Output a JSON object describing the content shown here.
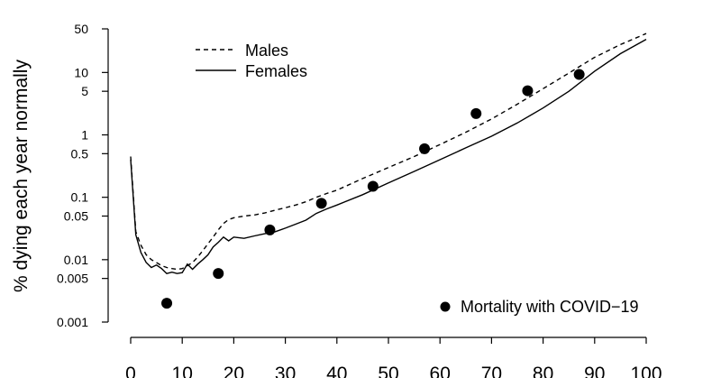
{
  "chart_data": {
    "type": "line",
    "title": "",
    "xlabel": "",
    "ylabel": "% dying each year normally",
    "xlim": [
      0,
      100
    ],
    "ylim": [
      0.001,
      50
    ],
    "yscale": "log",
    "x_ticks": [
      0,
      10,
      20,
      30,
      40,
      50,
      60,
      70,
      80,
      90,
      100
    ],
    "x_tick_labels": [
      "0",
      "10",
      "20",
      "30",
      "40",
      "50",
      "60",
      "70",
      "80",
      "90",
      "100"
    ],
    "y_ticks": [
      0.001,
      0.005,
      0.01,
      0.05,
      0.1,
      0.5,
      1,
      5,
      10,
      50
    ],
    "y_tick_labels": [
      "0.001",
      "0.005",
      "0.01",
      "0.05",
      "0.1",
      "0.5",
      "1",
      "5",
      "10",
      "50"
    ],
    "grid": false,
    "series": [
      {
        "name": "Males",
        "style": "dashed",
        "x": [
          0,
          1,
          2,
          3,
          4,
          5,
          6,
          7,
          8,
          9,
          10,
          11,
          12,
          13,
          14,
          15,
          16,
          17,
          18,
          19,
          20,
          22,
          24,
          26,
          28,
          30,
          32,
          34,
          36,
          38,
          40,
          45,
          50,
          55,
          60,
          65,
          70,
          75,
          80,
          85,
          90,
          95,
          100
        ],
        "values": [
          0.45,
          0.028,
          0.017,
          0.012,
          0.01,
          0.009,
          0.008,
          0.0075,
          0.0072,
          0.007,
          0.0072,
          0.008,
          0.009,
          0.011,
          0.014,
          0.018,
          0.023,
          0.03,
          0.038,
          0.044,
          0.047,
          0.05,
          0.052,
          0.056,
          0.062,
          0.068,
          0.075,
          0.085,
          0.1,
          0.115,
          0.13,
          0.2,
          0.3,
          0.45,
          0.7,
          1.1,
          1.8,
          3.1,
          5.5,
          9.8,
          17.5,
          28,
          42
        ]
      },
      {
        "name": "Females",
        "style": "solid",
        "x": [
          0,
          1,
          2,
          3,
          4,
          5,
          6,
          7,
          8,
          9,
          10,
          11,
          12,
          13,
          14,
          15,
          16,
          17,
          18,
          19,
          20,
          22,
          24,
          26,
          28,
          30,
          32,
          34,
          36,
          38,
          40,
          45,
          50,
          55,
          60,
          65,
          70,
          75,
          80,
          85,
          90,
          95,
          100
        ],
        "values": [
          0.4,
          0.025,
          0.013,
          0.009,
          0.0075,
          0.0082,
          0.0072,
          0.006,
          0.0063,
          0.006,
          0.0062,
          0.0085,
          0.007,
          0.0085,
          0.01,
          0.012,
          0.016,
          0.019,
          0.023,
          0.02,
          0.023,
          0.022,
          0.024,
          0.026,
          0.028,
          0.032,
          0.037,
          0.043,
          0.055,
          0.065,
          0.075,
          0.11,
          0.17,
          0.26,
          0.4,
          0.62,
          0.95,
          1.55,
          2.7,
          5.0,
          10.5,
          20,
          34
        ]
      },
      {
        "name": "Mortality with COVID−19",
        "style": "points",
        "x": [
          7,
          17,
          27,
          37,
          47,
          57,
          67,
          77,
          87
        ],
        "values": [
          0.002,
          0.006,
          0.03,
          0.08,
          0.15,
          0.6,
          2.2,
          5.1,
          9.3
        ]
      }
    ]
  },
  "legend": {
    "males": "Males",
    "females": "Females",
    "covid": "Mortality with COVID−19"
  }
}
